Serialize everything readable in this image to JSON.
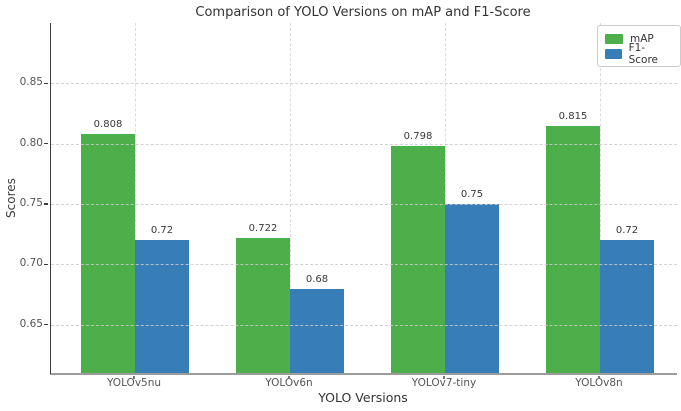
{
  "chart_data": {
    "type": "bar",
    "title": "Comparison of YOLO Versions on mAP and F1-Score",
    "xlabel": "YOLO Versions",
    "ylabel": "Scores",
    "categories": [
      "YOLOv5nu",
      "YOLOv6n",
      "YOLOv7-tiny",
      "YOLOv8n"
    ],
    "series": [
      {
        "name": "mAP",
        "color": "#4daf4a",
        "values": [
          0.808,
          0.722,
          0.798,
          0.815
        ],
        "value_labels": [
          "0.808",
          "0.722",
          "0.798",
          "0.815"
        ]
      },
      {
        "name": "F1-Score",
        "color": "#377eb8",
        "values": [
          0.72,
          0.68,
          0.75,
          0.72
        ],
        "value_labels": [
          "0.72",
          "0.68",
          "0.75",
          "0.72"
        ]
      }
    ],
    "ylim": [
      0.61,
      0.9
    ],
    "yticks": [
      0.65,
      0.7,
      0.75,
      0.8,
      0.85
    ],
    "ytick_labels": [
      "0.65",
      "0.70",
      "0.75",
      "0.80",
      "0.85"
    ],
    "grid": {
      "style": "dashed",
      "axis": "both",
      "over_bars": true
    },
    "legend": {
      "position": "upper-right",
      "entries": [
        "mAP",
        "F1-Score"
      ]
    }
  }
}
